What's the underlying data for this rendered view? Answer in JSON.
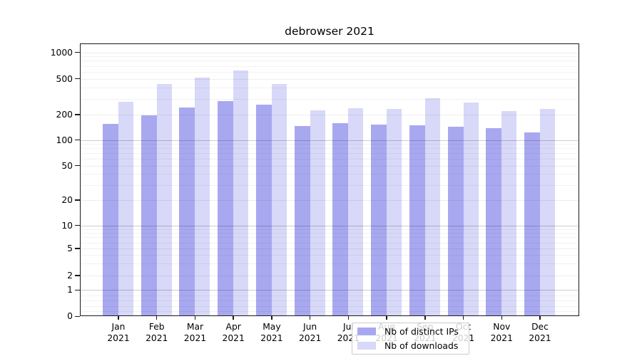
{
  "chart_data": {
    "type": "bar",
    "title": "debrowser 2021",
    "categories": [
      "Jan 2021",
      "Feb 2021",
      "Mar 2021",
      "Apr 2021",
      "May 2021",
      "Jun 2021",
      "Jul 2021",
      "Aug 2021",
      "Sep 2021",
      "Oct 2021",
      "Nov 2021",
      "Dec 2021"
    ],
    "series": [
      {
        "name": "Nb of distinct IPs",
        "color": "#a8a8f0",
        "values": [
          155,
          195,
          240,
          280,
          260,
          146,
          158,
          153,
          149,
          144,
          138,
          124
        ]
      },
      {
        "name": "Nb of downloads",
        "color": "#d8d8f8",
        "values": [
          275,
          440,
          515,
          620,
          440,
          225,
          235,
          232,
          305,
          272,
          220,
          230
        ]
      }
    ],
    "y_axis": {
      "scale": "symlog",
      "tick_labels": [
        "1000",
        "500",
        "200",
        "100",
        "50",
        "20",
        "10",
        "5",
        "2",
        "1",
        "0"
      ],
      "tick_values": [
        1000,
        500,
        200,
        100,
        50,
        20,
        10,
        5,
        2,
        1,
        0
      ],
      "range": [
        0,
        1270
      ]
    },
    "x_axis": {
      "label": ""
    },
    "grid": "on",
    "legend_position": "lower center"
  }
}
